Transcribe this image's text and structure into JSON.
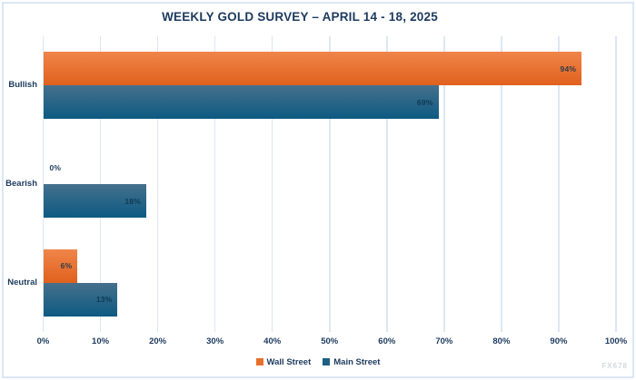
{
  "watermark": "FX678",
  "colors": {
    "title_text": "#1c3a5e",
    "axis_text": "#1c3a5e",
    "grid": "#dce7f4",
    "frame_border": "#dbe6f4",
    "wall_street": "#e8702b",
    "main_street": "#1b5f85",
    "label_on_wall_street": "#2d3c4b",
    "label_on_main_street": "#0e3a54"
  },
  "chart_data": {
    "type": "bar",
    "orientation": "horizontal",
    "title": "WEEKLY GOLD SURVEY – APRIL 14 - 18, 2025",
    "categories": [
      "Bullish",
      "Bearish",
      "Neutral"
    ],
    "series": [
      {
        "name": "Wall Street",
        "values": [
          94,
          0,
          6
        ],
        "data_labels": [
          "94%",
          "0%",
          "6%"
        ],
        "color": "#e8702b",
        "gradient": [
          "#f0854a",
          "#e0611d"
        ],
        "label_color": "#2d3c4b"
      },
      {
        "name": "Main Street",
        "values": [
          69,
          18,
          13
        ],
        "data_labels": [
          "69%",
          "18%",
          "13%"
        ],
        "color": "#1b5f85",
        "gradient": [
          "#45708c",
          "#0d5a82"
        ],
        "label_color": "#0e3a54"
      }
    ],
    "x_ticks": [
      "0%",
      "10%",
      "20%",
      "30%",
      "40%",
      "50%",
      "60%",
      "70%",
      "80%",
      "90%",
      "100%"
    ],
    "xlim": [
      0,
      100
    ],
    "grid": "vertical",
    "legend_position": "bottom"
  }
}
